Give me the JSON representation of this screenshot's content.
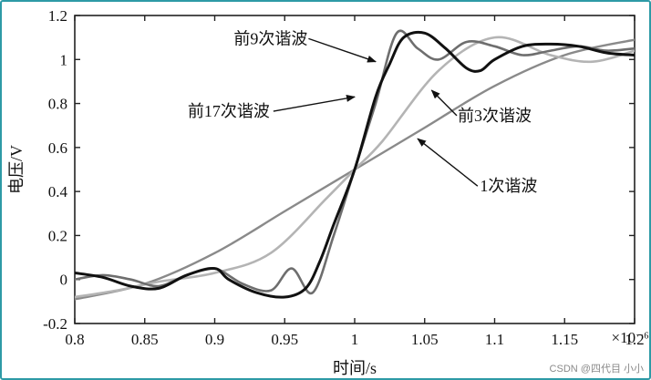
{
  "chart_data": {
    "type": "line",
    "xlabel": "时间/s",
    "ylabel": "电压/V",
    "x_multiplier": "×10⁻⁶",
    "xlim": [
      0.8,
      1.2
    ],
    "ylim": [
      -0.2,
      1.2
    ],
    "x_ticks": [
      "0.8",
      "0.85",
      "0.9",
      "0.95",
      "1",
      "1.05",
      "1.1",
      "1.15",
      "1.2"
    ],
    "y_ticks": [
      "-0.2",
      "0",
      "0.2",
      "0.4",
      "0.6",
      "0.8",
      "1",
      "1.2"
    ],
    "grid": false,
    "series": [
      {
        "name": "1次谐波",
        "color": "#8a8a8a",
        "x": [
          0.8,
          0.85,
          0.9,
          0.95,
          1.0,
          1.05,
          1.1,
          1.15,
          1.2
        ],
        "y": [
          -0.09,
          -0.02,
          0.12,
          0.31,
          0.5,
          0.69,
          0.88,
          1.02,
          1.09
        ]
      },
      {
        "name": "前3次谐波",
        "color": "#b4b4b4",
        "x": [
          0.8,
          0.83,
          0.86,
          0.9,
          0.94,
          0.98,
          1.0,
          1.02,
          1.06,
          1.1,
          1.14,
          1.17,
          1.2
        ],
        "y": [
          -0.08,
          -0.05,
          -0.01,
          0.03,
          0.12,
          0.37,
          0.5,
          0.63,
          0.95,
          1.1,
          1.02,
          0.99,
          1.04
        ]
      },
      {
        "name": "前9次谐波",
        "color": "#6e6e6e",
        "x": [
          0.8,
          0.82,
          0.84,
          0.86,
          0.88,
          0.9,
          0.92,
          0.94,
          0.955,
          0.97,
          0.985,
          1.0,
          1.015,
          1.03,
          1.045,
          1.06,
          1.08,
          1.1,
          1.12,
          1.14,
          1.16,
          1.18,
          1.2
        ],
        "y": [
          0.0,
          0.02,
          0.0,
          -0.03,
          0.02,
          0.05,
          -0.02,
          -0.05,
          0.05,
          -0.06,
          0.2,
          0.5,
          0.8,
          1.12,
          1.05,
          1.0,
          1.08,
          1.06,
          1.02,
          1.04,
          1.06,
          1.04,
          1.05
        ]
      },
      {
        "name": "前17次谐波",
        "color": "#111111",
        "x": [
          0.8,
          0.82,
          0.84,
          0.86,
          0.88,
          0.9,
          0.91,
          0.93,
          0.95,
          0.965,
          0.975,
          0.985,
          1.0,
          1.015,
          1.025,
          1.035,
          1.05,
          1.065,
          1.08,
          1.09,
          1.1,
          1.12,
          1.14,
          1.16,
          1.18,
          1.2
        ],
        "y": [
          0.03,
          0.01,
          -0.03,
          -0.04,
          0.02,
          0.05,
          0.0,
          -0.06,
          -0.08,
          -0.04,
          0.08,
          0.25,
          0.5,
          0.83,
          0.98,
          1.1,
          1.12,
          1.05,
          0.96,
          0.95,
          1.0,
          1.06,
          1.07,
          1.06,
          1.03,
          1.02
        ]
      }
    ],
    "annotations": [
      {
        "text": "前9次谐波",
        "x": 0.94,
        "y": 1.07,
        "arrow_to_x": 1.015,
        "arrow_to_y": 0.99
      },
      {
        "text": "前17次谐波",
        "x": 0.91,
        "y": 0.74,
        "arrow_to_x": 1.0,
        "arrow_to_y": 0.83
      },
      {
        "text": "前3次谐波",
        "x": 1.1,
        "y": 0.72,
        "arrow_to_x": 1.055,
        "arrow_to_y": 0.86
      },
      {
        "text": "1次谐波",
        "x": 1.11,
        "y": 0.4,
        "arrow_to_x": 1.045,
        "arrow_to_y": 0.64
      }
    ]
  },
  "watermark": "CSDN @四代目 小小"
}
